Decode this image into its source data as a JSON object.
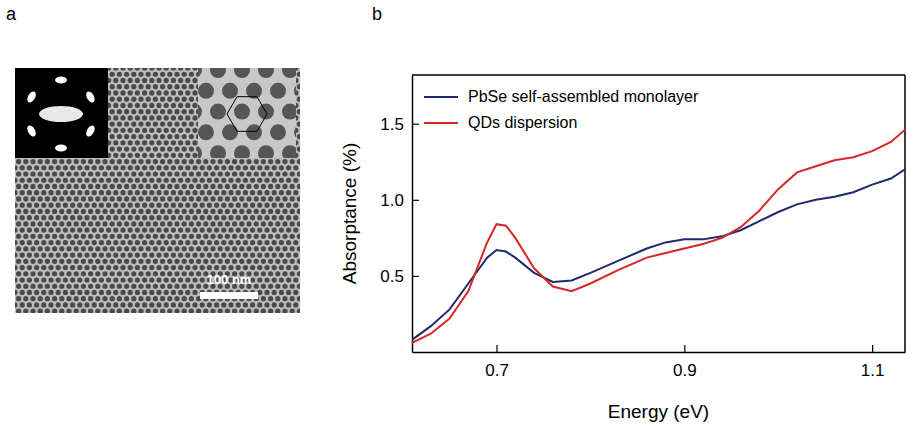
{
  "figure": {
    "panel_labels": [
      "a",
      "b"
    ],
    "scale_bar": "100 nm"
  },
  "chart_data": {
    "type": "line",
    "x_label": "Energy (eV)",
    "y_label": "Absorptance (%)",
    "x": [
      0.61,
      0.63,
      0.65,
      0.67,
      0.69,
      0.7,
      0.71,
      0.72,
      0.74,
      0.76,
      0.78,
      0.8,
      0.83,
      0.86,
      0.88,
      0.9,
      0.92,
      0.94,
      0.96,
      0.98,
      1.0,
      1.02,
      1.04,
      1.06,
      1.08,
      1.1,
      1.12,
      1.135
    ],
    "series": [
      {
        "name": "PbSe self-assembled monolayer",
        "color": "#1f2a6e",
        "values": [
          0.08,
          0.17,
          0.28,
          0.45,
          0.62,
          0.67,
          0.66,
          0.62,
          0.52,
          0.46,
          0.47,
          0.52,
          0.6,
          0.68,
          0.72,
          0.74,
          0.74,
          0.76,
          0.8,
          0.86,
          0.92,
          0.97,
          1.0,
          1.02,
          1.05,
          1.1,
          1.14,
          1.2
        ]
      },
      {
        "name": "QDs dispersion",
        "color": "#d62728",
        "values": [
          0.06,
          0.12,
          0.22,
          0.4,
          0.72,
          0.84,
          0.83,
          0.75,
          0.55,
          0.43,
          0.4,
          0.45,
          0.54,
          0.62,
          0.65,
          0.68,
          0.71,
          0.75,
          0.82,
          0.93,
          1.07,
          1.18,
          1.22,
          1.26,
          1.28,
          1.32,
          1.38,
          1.46
        ]
      }
    ],
    "xlim": [
      0.61,
      1.135
    ],
    "xticks": [
      0.7,
      0.9,
      1.1
    ],
    "ylim": [
      0,
      1.82
    ],
    "yticks": [
      0.5,
      {
        "value": 1,
        "label": "1.0"
      },
      1.5
    ],
    "grid": false,
    "legend": "upper left"
  }
}
